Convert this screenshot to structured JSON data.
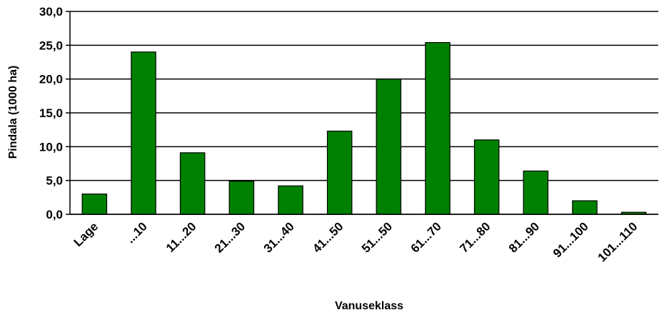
{
  "chart_data": {
    "type": "bar",
    "title": "",
    "xlabel": "Vanuseklass",
    "ylabel": "Pindala (1000 ha)",
    "categories": [
      "Lage",
      "...10",
      "11...20",
      "21...30",
      "31...40",
      "41...50",
      "51...50",
      "61...70",
      "71...80",
      "81...90",
      "91...100",
      "101...110"
    ],
    "series": [
      {
        "values": [
          3.0,
          24.0,
          9.1,
          4.9,
          4.2,
          12.3,
          20.0,
          25.4,
          11.0,
          6.4,
          2.0,
          0.3
        ]
      }
    ],
    "ylim": [
      0,
      30
    ],
    "yticks": [
      0,
      5,
      10,
      15,
      20,
      25,
      30
    ],
    "ytick_labels": [
      "0,0",
      "5,0",
      "10,0",
      "15,0",
      "20,0",
      "25,0",
      "30,0"
    ],
    "grid": true,
    "legend": "none",
    "bar_color": "#008000"
  }
}
